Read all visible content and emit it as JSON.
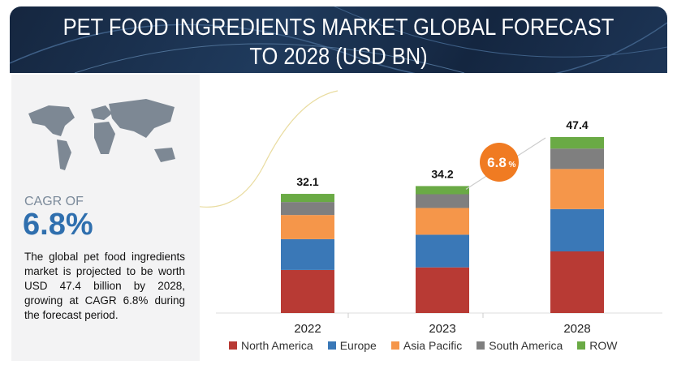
{
  "header": {
    "title": "PET FOOD INGREDIENTS MARKET GLOBAL FORECAST TO 2028 (USD BN)"
  },
  "left_panel": {
    "cagr_label": "CAGR OF",
    "cagr_value": "6.8%",
    "description": "The global pet food ingredients market is projected to be worth USD 47.4 billion by 2028, growing at CAGR 6.8% during the forecast period.",
    "map_icon": "world-map"
  },
  "chart_data": {
    "type": "bar",
    "stacked": true,
    "title": "PET FOOD INGREDIENTS MARKET GLOBAL FORECAST TO 2028 (USD BN)",
    "categories": [
      "2022",
      "2023",
      "2028"
    ],
    "totals": [
      "32.1",
      "34.2",
      "47.4"
    ],
    "series": [
      {
        "name": "North America",
        "color": "#b83a34",
        "values": [
          11.6,
          12.3,
          16.6
        ]
      },
      {
        "name": "Europe",
        "color": "#3a78b7",
        "values": [
          8.3,
          8.8,
          11.4
        ]
      },
      {
        "name": "Asia Pacific",
        "color": "#f5964a",
        "values": [
          6.5,
          7.2,
          10.8
        ]
      },
      {
        "name": "South America",
        "color": "#7f7f7f",
        "values": [
          3.5,
          3.7,
          5.5
        ]
      },
      {
        "name": "ROW",
        "color": "#6aaa45",
        "values": [
          2.2,
          2.2,
          3.1
        ]
      }
    ],
    "ylim": [
      0,
      50
    ],
    "grid": false,
    "legend": "bottom",
    "annotation": {
      "text": "6.8",
      "suffix": "%",
      "color": "#f07b22"
    }
  }
}
